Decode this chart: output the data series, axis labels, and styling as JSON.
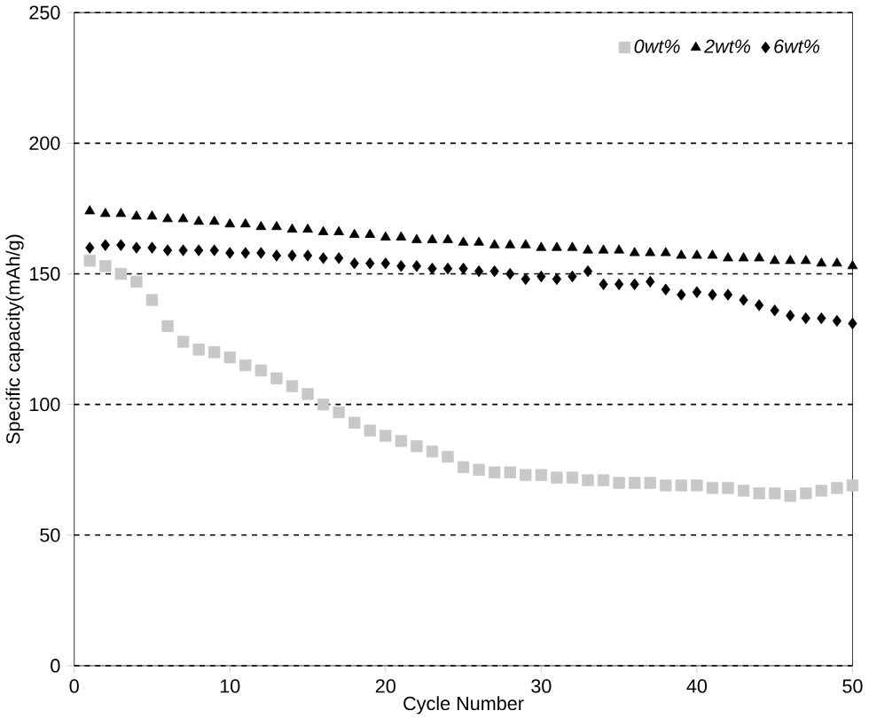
{
  "chart_data": {
    "type": "scatter",
    "xlabel": "Cycle Number",
    "ylabel": "Specific capacity(mAh/g)",
    "x": [
      1,
      2,
      3,
      4,
      5,
      6,
      7,
      8,
      9,
      10,
      11,
      12,
      13,
      14,
      15,
      16,
      17,
      18,
      19,
      20,
      21,
      22,
      23,
      24,
      25,
      26,
      27,
      28,
      29,
      30,
      31,
      32,
      33,
      34,
      35,
      36,
      37,
      38,
      39,
      40,
      41,
      42,
      43,
      44,
      45,
      46,
      47,
      48,
      49,
      50
    ],
    "xlim": [
      0,
      50
    ],
    "xticks": [
      0,
      10,
      20,
      30,
      40,
      50
    ],
    "ylim": [
      0,
      250
    ],
    "yticks": [
      0,
      50,
      100,
      150,
      200,
      250
    ],
    "grid": "y",
    "legend": "top right",
    "series": [
      {
        "name": "0wt%",
        "color": "#c8c8c8",
        "marker": "square",
        "values": [
          155,
          153,
          150,
          147,
          140,
          130,
          124,
          121,
          120,
          118,
          115,
          113,
          110,
          107,
          104,
          100,
          97,
          93,
          90,
          88,
          86,
          84,
          82,
          80,
          76,
          75,
          74,
          74,
          73,
          73,
          72,
          72,
          71,
          71,
          70,
          70,
          70,
          69,
          69,
          69,
          68,
          68,
          67,
          66,
          66,
          65,
          66,
          67,
          68,
          69
        ]
      },
      {
        "name": "2wt%",
        "color": "#000000",
        "marker": "triangle",
        "values": [
          174,
          173,
          173,
          172,
          172,
          171,
          171,
          170,
          170,
          169,
          169,
          168,
          168,
          167,
          167,
          166,
          166,
          165,
          165,
          164,
          164,
          163,
          163,
          163,
          162,
          162,
          161,
          161,
          161,
          160,
          160,
          160,
          159,
          159,
          159,
          158,
          158,
          158,
          157,
          157,
          157,
          156,
          156,
          156,
          155,
          155,
          155,
          154,
          154,
          153
        ]
      },
      {
        "name": "6wt%",
        "color": "#000000",
        "marker": "diamond",
        "values": [
          160,
          161,
          161,
          160,
          160,
          159,
          159,
          159,
          159,
          158,
          158,
          158,
          157,
          157,
          157,
          156,
          156,
          154,
          154,
          154,
          153,
          153,
          152,
          152,
          152,
          151,
          151,
          150,
          148,
          149,
          148,
          149,
          151,
          146,
          146,
          146,
          147,
          144,
          142,
          143,
          142,
          142,
          140,
          138,
          136,
          134,
          133,
          133,
          132,
          131
        ]
      }
    ]
  }
}
